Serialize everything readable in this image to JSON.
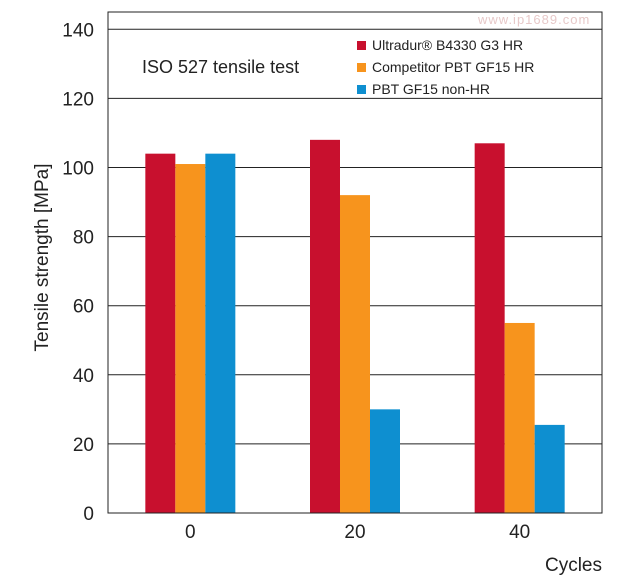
{
  "watermark": "www.ip1689.com",
  "chart_data": {
    "type": "bar",
    "title": "",
    "annotation": "ISO 527 tensile test",
    "xlabel": "Cycles",
    "ylabel": "Tensile strength [MPa]",
    "categories": [
      "0",
      "20",
      "40"
    ],
    "ylim": [
      0,
      145
    ],
    "yticks": [
      0,
      20,
      40,
      60,
      80,
      100,
      120,
      140
    ],
    "grid": true,
    "legend_position": "top-right",
    "series": [
      {
        "name": "Ultradur® B4330 G3 HR",
        "color": "#c8102e",
        "values": [
          104,
          108,
          107
        ]
      },
      {
        "name": "Competitor PBT GF15 HR",
        "color": "#f7941d",
        "values": [
          101,
          92,
          55
        ]
      },
      {
        "name": "PBT GF15 non-HR",
        "color": "#0e8fd0",
        "values": [
          104,
          30,
          25.5
        ]
      }
    ]
  }
}
